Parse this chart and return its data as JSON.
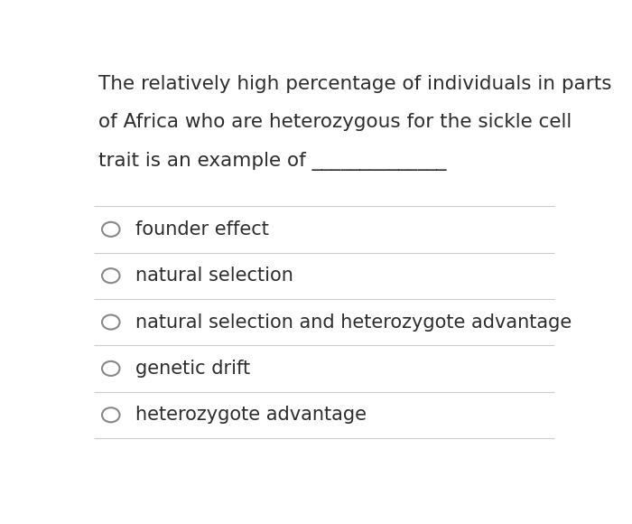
{
  "background_color": "#ffffff",
  "question_lines": [
    "The relatively high percentage of individuals in parts",
    "of Africa who are heterozygous for the sickle cell",
    "trait is an example of ______________"
  ],
  "options": [
    "founder effect",
    "natural selection",
    "natural selection and heterozygote advantage",
    "genetic drift",
    "heterozygote advantage"
  ],
  "text_color": "#2d2d2d",
  "line_color": "#cccccc",
  "circle_color": "#888888",
  "question_fontsize": 15.5,
  "option_fontsize": 15.0,
  "fig_width": 7.0,
  "fig_height": 5.8
}
